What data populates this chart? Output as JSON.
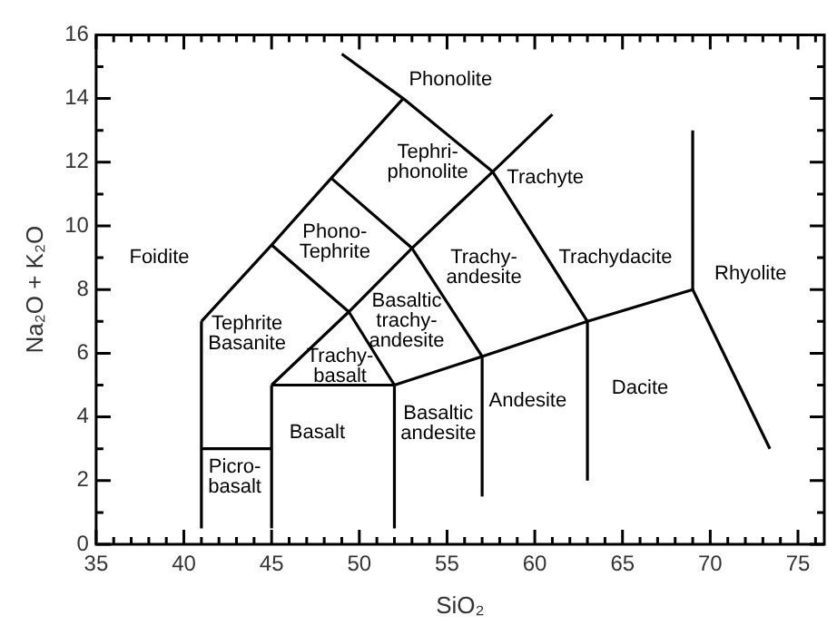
{
  "chart_data": {
    "type": "line",
    "xlabel": "SiO₂",
    "ylabel": "Na₂O + K₂O",
    "xlim": [
      35,
      76.5
    ],
    "ylim": [
      0,
      16
    ],
    "xticks": [
      35,
      {
        "value": 36,
        "label": null
      },
      {
        "value": 37,
        "label": null
      },
      {
        "value": 38,
        "label": null
      },
      {
        "value": 39,
        "label": null
      },
      40,
      {
        "value": 41,
        "label": null
      },
      {
        "value": 42,
        "label": null
      },
      {
        "value": 43,
        "label": null
      },
      {
        "value": 44,
        "label": null
      },
      45,
      {
        "value": 46,
        "label": null
      },
      {
        "value": 47,
        "label": null
      },
      {
        "value": 48,
        "label": null
      },
      {
        "value": 49,
        "label": null
      },
      50,
      {
        "value": 51,
        "label": null
      },
      {
        "value": 52,
        "label": null
      },
      {
        "value": 53,
        "label": null
      },
      {
        "value": 54,
        "label": null
      },
      55,
      {
        "value": 56,
        "label": null
      },
      {
        "value": 57,
        "label": null
      },
      {
        "value": 58,
        "label": null
      },
      {
        "value": 59,
        "label": null
      },
      60,
      {
        "value": 61,
        "label": null
      },
      {
        "value": 62,
        "label": null
      },
      {
        "value": 63,
        "label": null
      },
      {
        "value": 64,
        "label": null
      },
      65,
      {
        "value": 66,
        "label": null
      },
      {
        "value": 67,
        "label": null
      },
      {
        "value": 68,
        "label": null
      },
      {
        "value": 69,
        "label": null
      },
      70,
      {
        "value": 71,
        "label": null
      },
      {
        "value": 72,
        "label": null
      },
      {
        "value": 73,
        "label": null
      },
      {
        "value": 74,
        "label": null
      },
      75,
      {
        "value": 76,
        "label": null
      }
    ],
    "yticks": [
      0,
      {
        "value": 1,
        "label": null
      },
      2,
      {
        "value": 3,
        "label": null
      },
      4,
      {
        "value": 5,
        "label": null
      },
      6,
      {
        "value": 7,
        "label": null
      },
      8,
      {
        "value": 9,
        "label": null
      },
      10,
      {
        "value": 11,
        "label": null
      },
      12,
      {
        "value": 13,
        "label": null
      },
      14,
      {
        "value": 15,
        "label": null
      },
      16
    ],
    "grid": false,
    "legend": false,
    "marker": "none",
    "line_style": "solid",
    "series": [
      {
        "color": "#000000",
        "x": [
          41,
          41
        ],
        "values": [
          0.5,
          7
        ]
      },
      {
        "color": "#000000",
        "x": [
          41,
          45
        ],
        "values": [
          3,
          3
        ]
      },
      {
        "color": "#000000",
        "x": [
          45,
          45
        ],
        "values": [
          0.5,
          5
        ]
      },
      {
        "color": "#000000",
        "x": [
          45,
          49.4,
          53,
          57.6,
          61
        ],
        "values": [
          5,
          7.3,
          9.3,
          11.7,
          13.5
        ]
      },
      {
        "color": "#000000",
        "x": [
          45,
          52,
          57,
          63,
          69,
          73.4
        ],
        "values": [
          5,
          5,
          5.9,
          7,
          8,
          3
        ]
      },
      {
        "color": "#000000",
        "x": [
          52,
          52
        ],
        "values": [
          0.5,
          5
        ]
      },
      {
        "color": "#000000",
        "x": [
          57,
          57
        ],
        "values": [
          1.5,
          5.9
        ]
      },
      {
        "color": "#000000",
        "x": [
          63,
          63
        ],
        "values": [
          2,
          7
        ]
      },
      {
        "color": "#000000",
        "x": [
          69,
          69
        ],
        "values": [
          8,
          13
        ]
      },
      {
        "color": "#000000",
        "x": [
          41,
          45,
          48.4,
          52.5,
          57.6,
          63
        ],
        "values": [
          7,
          9.4,
          11.5,
          14,
          11.7,
          7
        ]
      },
      {
        "color": "#000000",
        "x": [
          45,
          49.4,
          52
        ],
        "values": [
          9.4,
          7.3,
          5
        ]
      },
      {
        "color": "#000000",
        "x": [
          48.4,
          53,
          57
        ],
        "values": [
          11.5,
          9.3,
          5.9
        ]
      },
      {
        "color": "#000000",
        "x": [
          52.5,
          49
        ],
        "values": [
          14,
          15.4
        ]
      }
    ],
    "annotations": [
      "Phonolite",
      "Tephri-\nphonolite",
      "Trachyte",
      "Phono-\nTephrite",
      "Foidite",
      "Trachy-\nandesite",
      "Trachydacite",
      "Rhyolite",
      "Tephrite\nBasanite",
      "Basaltic\ntrachy-\nandesite",
      "Trachy-\nbasalt",
      "Andesite",
      "Dacite",
      "Basalt",
      "Basaltic\nandesite",
      "Picro-\nbasalt"
    ]
  }
}
